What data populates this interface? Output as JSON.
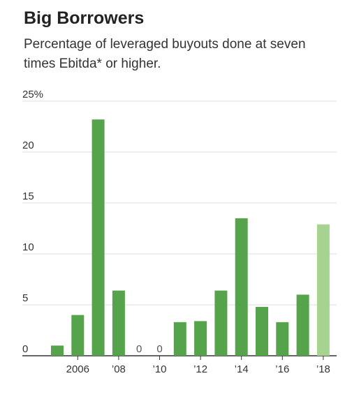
{
  "title": "Big Borrowers",
  "subtitle": "Percentage of leveraged buyouts done at seven times Ebitda* or higher.",
  "colors": {
    "bar": "#55a34b",
    "bar_highlight": "#a6d38f",
    "grid": "#dddddd",
    "axis": "#333333"
  },
  "chart_data": {
    "type": "bar",
    "title": "Big Borrowers",
    "subtitle": "Percentage of leveraged buyouts done at seven times Ebitda* or higher.",
    "x": [
      2005,
      2006,
      2007,
      2008,
      2009,
      2010,
      2011,
      2012,
      2013,
      2014,
      2015,
      2016,
      2017,
      2018
    ],
    "values": [
      1.0,
      4.0,
      23.2,
      6.4,
      0,
      0,
      3.3,
      3.4,
      6.4,
      13.5,
      4.8,
      3.3,
      6.0,
      12.9
    ],
    "highlight_last": true,
    "zero_labels": [
      "0",
      "0"
    ],
    "ylim": [
      0,
      25
    ],
    "y_ticks": [
      0,
      5,
      10,
      15,
      20,
      25
    ],
    "y_tick_labels": [
      "0",
      "5",
      "10",
      "15",
      "20",
      "25%"
    ],
    "x_tick_labels": [
      {
        "x": 2006,
        "label": "2006"
      },
      {
        "x": 2008,
        "label": "’08"
      },
      {
        "x": 2010,
        "label": "’10"
      },
      {
        "x": 2012,
        "label": "’12"
      },
      {
        "x": 2014,
        "label": "’14"
      },
      {
        "x": 2016,
        "label": "’16"
      },
      {
        "x": 2018,
        "label": "’18"
      }
    ],
    "grid": true,
    "xlabel": "",
    "ylabel": ""
  }
}
